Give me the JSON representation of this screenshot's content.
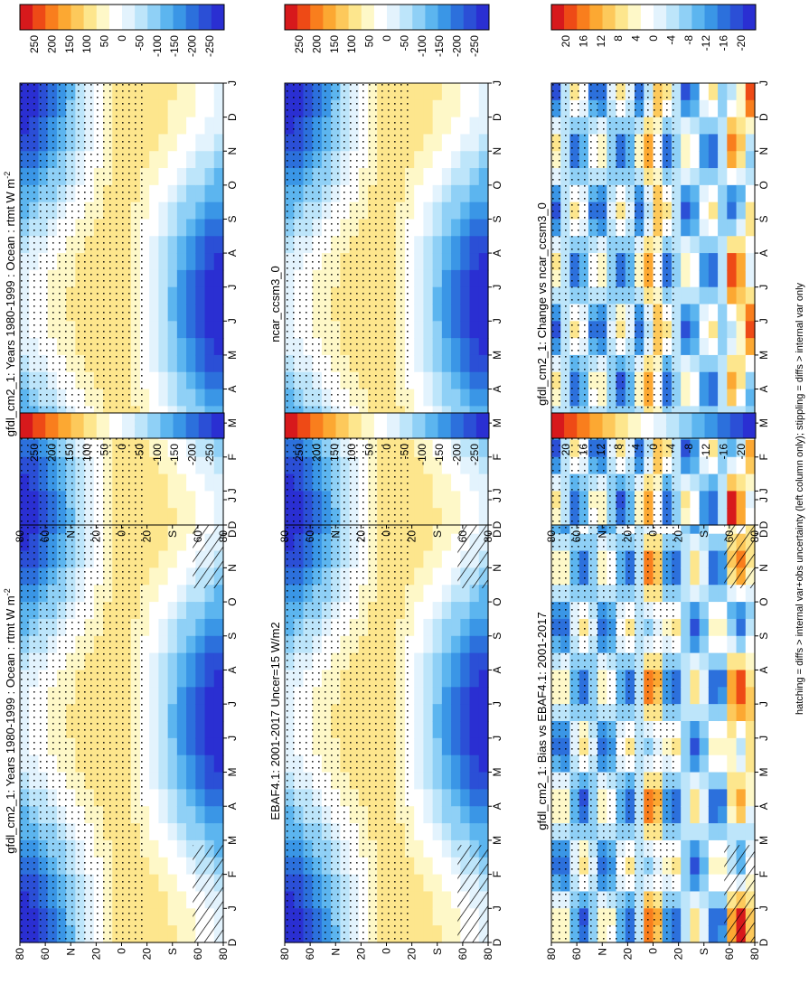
{
  "chart_data": [
    {
      "type": "heatmap",
      "title": "gfdl_cm2_1: Years 1980-1999 : Ocean : rtmt W m",
      "title_sup": "-2",
      "x": [
        "D",
        "J",
        "F",
        "M",
        "A",
        "M",
        "J",
        "J",
        "A",
        "S",
        "O",
        "N",
        "D",
        "J"
      ],
      "y": [
        "80",
        "60",
        "N",
        "20",
        "0",
        "20",
        "S",
        "60",
        "80"
      ],
      "ylabel_n": "°N",
      "ylabel_s": "°S",
      "colorbar": [
        "250",
        "200",
        "150",
        "100",
        "50",
        "0",
        "-50",
        "-100",
        "-150",
        "-200",
        "-250"
      ],
      "hatching": true
    },
    {
      "type": "heatmap",
      "title": "gfdl_cm2_1: Years 1980-1999 : Ocean : rtmt W m",
      "title_sup": "-2",
      "x": [
        "D",
        "J",
        "F",
        "M",
        "A",
        "M",
        "J",
        "J",
        "A",
        "S",
        "O",
        "N",
        "D",
        "J"
      ],
      "y": [
        "80",
        "60",
        "N",
        "20",
        "0",
        "20",
        "S",
        "60",
        "80"
      ],
      "colorbar": [
        "250",
        "200",
        "150",
        "100",
        "50",
        "0",
        "-50",
        "-100",
        "-150",
        "-200",
        "-250"
      ],
      "hatching": false
    },
    {
      "type": "heatmap",
      "title": "EBAF4.1: 2001-2017 Uncer=15 W/m2",
      "x": [
        "D",
        "J",
        "F",
        "M",
        "A",
        "M",
        "J",
        "J",
        "A",
        "S",
        "O",
        "N",
        "D",
        "J"
      ],
      "y": [
        "80",
        "60",
        "N",
        "20",
        "0",
        "20",
        "S",
        "60",
        "80"
      ],
      "colorbar": [
        "250",
        "200",
        "150",
        "100",
        "50",
        "0",
        "-50",
        "-100",
        "-150",
        "-200",
        "-250"
      ],
      "hatching": true
    },
    {
      "type": "heatmap",
      "title": "ncar_ccsm3_0",
      "x": [
        "D",
        "J",
        "F",
        "M",
        "A",
        "M",
        "J",
        "J",
        "A",
        "S",
        "O",
        "N",
        "D",
        "J"
      ],
      "y": [
        "80",
        "60",
        "N",
        "20",
        "0",
        "20",
        "S",
        "60",
        "80"
      ],
      "colorbar": [
        "250",
        "200",
        "150",
        "100",
        "50",
        "0",
        "-50",
        "-100",
        "-150",
        "-200",
        "-250"
      ],
      "hatching": false
    },
    {
      "type": "heatmap",
      "title": "gfdl_cm2_1: Bias vs EBAF4.1: 2001-2017",
      "x": [
        "D",
        "J",
        "F",
        "M",
        "A",
        "M",
        "J",
        "J",
        "A",
        "S",
        "O",
        "N",
        "D",
        "J"
      ],
      "y": [
        "80",
        "60",
        "N",
        "20",
        "0",
        "20",
        "S",
        "60",
        "80"
      ],
      "colorbar": [
        "20",
        "16",
        "12",
        "8",
        "4",
        "0",
        "-4",
        "-8",
        "-12",
        "-16",
        "-20"
      ],
      "hatching": true
    },
    {
      "type": "heatmap",
      "title": "gfdl_cm2_1: Change vs ncar_ccsm3_0",
      "x": [
        "D",
        "J",
        "F",
        "M",
        "A",
        "M",
        "J",
        "J",
        "A",
        "S",
        "O",
        "N",
        "D",
        "J"
      ],
      "y": [
        "80",
        "60",
        "N",
        "20",
        "0",
        "20",
        "S",
        "60",
        "80"
      ],
      "colorbar": [
        "20",
        "16",
        "12",
        "8",
        "4",
        "0",
        "-4",
        "-8",
        "-12",
        "-16",
        "-20"
      ],
      "hatching": false
    }
  ],
  "footnote": "hatching = diffs > internal var+obs uncertainty (left column only); stippling = diffs > internal var only",
  "colors": {
    "scale": [
      "#d7191c",
      "#ee4a16",
      "#f97e1d",
      "#fca832",
      "#fdc95b",
      "#fde68d",
      "#fef8c8",
      "#ffffff",
      "#e3f3fd",
      "#bde5fa",
      "#8fd0f6",
      "#5cb5ef",
      "#3a96e6",
      "#2c70dc",
      "#2b4fd6",
      "#2a2fd2"
    ]
  }
}
